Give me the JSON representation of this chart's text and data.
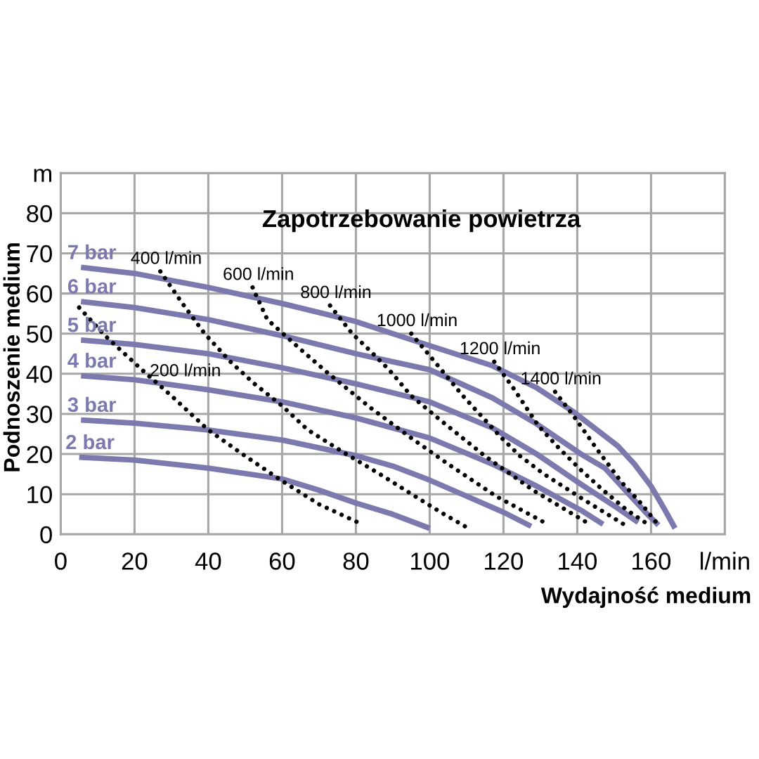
{
  "chart_data": {
    "type": "line",
    "title": "Zapotrzebowanie powietrza",
    "xlabel": "Wydajność medium",
    "ylabel": "Podnoszenie medium",
    "xlim": [
      0,
      180
    ],
    "xticks": [
      0,
      20,
      40,
      60,
      80,
      100,
      120,
      140,
      160,
      {
        "value": 180,
        "label": "l/min"
      }
    ],
    "ylim": [
      0,
      90
    ],
    "yticks": [
      0,
      10,
      20,
      30,
      40,
      50,
      60,
      70,
      80,
      {
        "value": 90,
        "label": "m"
      }
    ],
    "grid": true,
    "series": [
      {
        "name": "2 bar",
        "color": "#7b79ad",
        "line_style": "solid",
        "x": [
          5,
          20,
          40,
          60,
          70,
          80,
          90,
          100
        ],
        "values": [
          19.2,
          18.5,
          16.5,
          13.8,
          11,
          7.8,
          5,
          1.5
        ]
      },
      {
        "name": "3 bar",
        "color": "#7b79ad",
        "line_style": "solid",
        "x": [
          5.5,
          20,
          40,
          60,
          80,
          90,
          100,
          110,
          120,
          127.5
        ],
        "values": [
          28.5,
          27.7,
          26,
          23.5,
          19.6,
          17,
          13.5,
          9.5,
          5.5,
          2
        ]
      },
      {
        "name": "4 bar",
        "color": "#7b79ad",
        "line_style": "solid",
        "x": [
          5.5,
          20,
          40,
          60,
          80,
          100,
          117,
          129,
          141,
          147
        ],
        "values": [
          39.5,
          38.5,
          36,
          33,
          29,
          24,
          17.5,
          12,
          6,
          2.5
        ]
      },
      {
        "name": "5 bar",
        "color": "#7b79ad",
        "line_style": "solid",
        "x": [
          5.5,
          20,
          40,
          60,
          80,
          100,
          117,
          129,
          141,
          151,
          156.5
        ],
        "values": [
          48.4,
          47.3,
          45,
          41.5,
          37.5,
          33,
          26.5,
          20,
          12.5,
          6.5,
          3
        ]
      },
      {
        "name": "6 bar",
        "color": "#7b79ad",
        "line_style": "solid",
        "x": [
          5.5,
          20,
          40,
          60,
          80,
          100,
          117,
          129,
          141,
          147.5,
          154.5,
          158.5,
          162
        ],
        "values": [
          58,
          56.5,
          53.5,
          49.5,
          45,
          41,
          34,
          27.5,
          20,
          16.5,
          9.5,
          5.5,
          2.3
        ]
      },
      {
        "name": "7 bar",
        "color": "#7b79ad",
        "line_style": "solid",
        "x": [
          5.5,
          20,
          40,
          60,
          80,
          100,
          117,
          129,
          139,
          151,
          155.5,
          160,
          163.5,
          166.5
        ],
        "values": [
          66.5,
          65,
          61.5,
          57.5,
          53,
          47,
          42,
          36.5,
          30.5,
          22,
          17.5,
          12,
          6.5,
          1.5
        ]
      },
      {
        "name": "200 l/min",
        "color": "#000000",
        "line_style": "dotted",
        "x": [
          5,
          12,
          22,
          30,
          40,
          50,
          60,
          70,
          80.5
        ],
        "values": [
          56.5,
          49.5,
          41,
          34.5,
          26,
          19.5,
          13.3,
          7.5,
          3
        ]
      },
      {
        "name": "400 l/min",
        "color": "#000000",
        "line_style": "dotted",
        "x": [
          27,
          33,
          39,
          46,
          52.5,
          60,
          67,
          76.5,
          86.5,
          96,
          103,
          110.5
        ],
        "values": [
          65.5,
          57.5,
          50,
          43,
          37.5,
          32,
          26,
          20.5,
          15,
          9.5,
          5.5,
          1.5
        ]
      },
      {
        "name": "600 l/min",
        "color": "#000000",
        "line_style": "dotted",
        "x": [
          52,
          56,
          64.5,
          72,
          84,
          95,
          105,
          118,
          131
        ],
        "values": [
          61.5,
          53.5,
          46.5,
          40.5,
          31.5,
          24,
          17.5,
          9.5,
          3
        ]
      },
      {
        "name": "800 l/min",
        "color": "#000000",
        "line_style": "dotted",
        "x": [
          73,
          79,
          83,
          89,
          95,
          103.5,
          115,
          128,
          142.5
        ],
        "values": [
          57,
          50,
          46.5,
          41,
          34.5,
          28,
          19.5,
          11,
          3
        ]
      },
      {
        "name": "1000 l/min",
        "color": "#000000",
        "line_style": "dotted",
        "x": [
          95,
          100,
          109,
          119.5,
          124.5,
          131,
          142,
          153.5
        ],
        "values": [
          50,
          44.5,
          34.5,
          24,
          19.5,
          15,
          8.5,
          2
        ]
      },
      {
        "name": "1200 l/min",
        "color": "#000000",
        "line_style": "dotted",
        "x": [
          117.5,
          123,
          129.5,
          135,
          141,
          147,
          153.5,
          159.5
        ],
        "values": [
          43,
          36,
          27,
          21.5,
          16,
          11,
          6,
          2.3
        ]
      },
      {
        "name": "1400 l/min",
        "color": "#000000",
        "line_style": "dotted",
        "x": [
          134,
          139,
          145.5,
          152,
          157.5,
          162
        ],
        "values": [
          35.5,
          29.5,
          21,
          13,
          7.5,
          2.3
        ]
      }
    ]
  }
}
